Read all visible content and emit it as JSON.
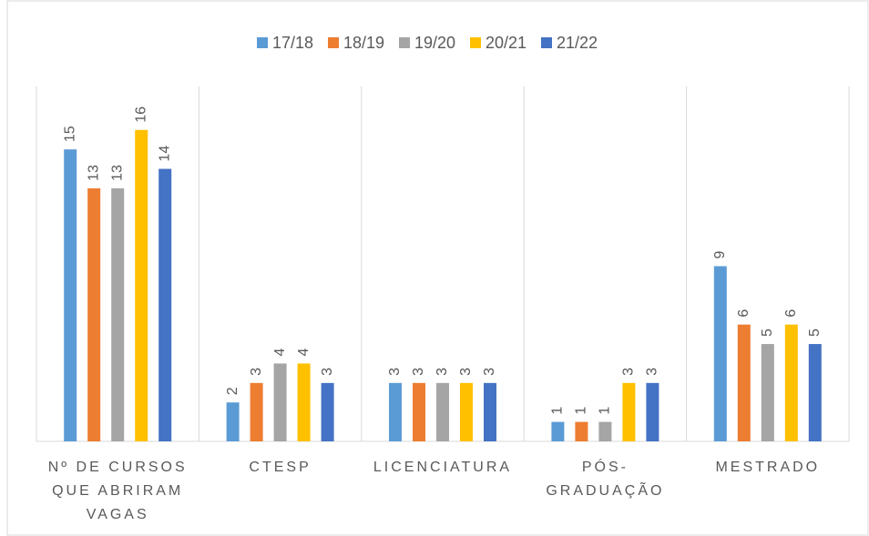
{
  "chart_data": {
    "type": "bar",
    "categories": [
      "Nº DE CURSOS QUE ABRIRAM VAGAS",
      "CTESP",
      "LICENCIATURA",
      "PÓS-GRADUAÇÃO",
      "MESTRADO"
    ],
    "series": [
      {
        "name": "17/18",
        "color": "#5b9bd5",
        "values": [
          15,
          2,
          3,
          1,
          9
        ]
      },
      {
        "name": "18/19",
        "color": "#ed7d31",
        "values": [
          13,
          3,
          3,
          1,
          6
        ]
      },
      {
        "name": "19/20",
        "color": "#a5a5a5",
        "values": [
          13,
          4,
          3,
          1,
          5
        ]
      },
      {
        "name": "20/21",
        "color": "#ffc000",
        "values": [
          16,
          4,
          3,
          3,
          6
        ]
      },
      {
        "name": "21/22",
        "color": "#4472c4",
        "values": [
          14,
          3,
          3,
          3,
          5
        ]
      }
    ],
    "ylim": [
      0,
      18
    ],
    "legend": "top"
  }
}
